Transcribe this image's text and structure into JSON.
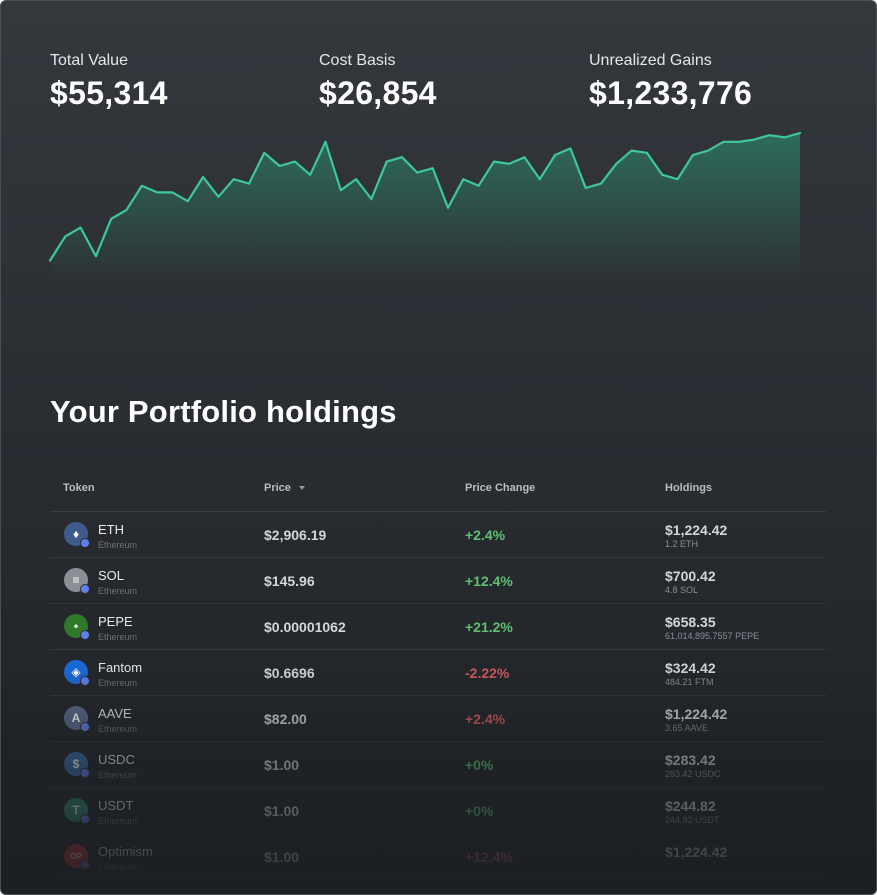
{
  "stats": [
    {
      "label": "Total Value",
      "value": "$55,314"
    },
    {
      "label": "Cost Basis",
      "value": "$26,854"
    },
    {
      "label": "Unrealized Gains",
      "value": "$1,233,776"
    }
  ],
  "chart_data": {
    "type": "area",
    "series": [
      {
        "values": [
          32,
          43,
          47,
          34,
          51,
          55,
          66,
          63,
          63,
          59,
          70,
          61,
          69,
          67,
          81,
          75,
          77,
          71,
          86,
          64,
          69,
          60,
          77,
          79,
          72,
          74,
          56,
          69,
          66,
          77,
          76,
          79,
          69,
          80,
          83,
          65,
          67,
          76,
          82,
          81,
          71,
          69,
          80,
          82,
          86,
          86,
          87,
          89,
          88,
          90
        ]
      }
    ],
    "ylim": [
      0,
      100
    ],
    "line_color": "#3ec79c",
    "fill_color": "#2a9a76"
  },
  "section_title": "Your Portfolio holdings",
  "table": {
    "headers": {
      "token": "Token",
      "price": "Price",
      "change": "Price Change",
      "holdings": "Holdings"
    },
    "sort_column": "price",
    "rows": [
      {
        "symbol": "ETH",
        "chain": "Ethereum",
        "price": "$2,906.19",
        "change": "+2.4%",
        "trend": "up",
        "value": "$1,224.42",
        "amount": "1.2 ETH",
        "icon": "eth-icon",
        "icon_bg": "#3f5a8c",
        "glyph": "♦"
      },
      {
        "symbol": "SOL",
        "chain": "Ethereum",
        "price": "$145.96",
        "change": "+12.4%",
        "trend": "up",
        "value": "$700.42",
        "amount": "4.8 SOL",
        "icon": "sol-icon",
        "icon_bg": "#8c9096",
        "glyph": "≡"
      },
      {
        "symbol": "PEPE",
        "chain": "Ethereum",
        "price": "$0.00001062",
        "change": "+21.2%",
        "trend": "up",
        "value": "$658.35",
        "amount": "61,014,895.7557 PEPE",
        "icon": "pepe-icon",
        "icon_bg": "#2f7a2a",
        "glyph": "•"
      },
      {
        "symbol": "Fantom",
        "chain": "Ethereum",
        "price": "$0.6696",
        "change": "-2.22%",
        "trend": "down",
        "value": "$324.42",
        "amount": "484.21 FTM",
        "icon": "fantom-icon",
        "icon_bg": "#1a6ad8",
        "glyph": "◈"
      },
      {
        "symbol": "AAVE",
        "chain": "Ethereum",
        "price": "$82.00",
        "change": "+2.4%",
        "trend": "down",
        "value": "$1,224.42",
        "amount": "3.65 AAVE",
        "icon": "aave-icon",
        "icon_bg": "#5a6a8c",
        "glyph": "A"
      },
      {
        "symbol": "USDC",
        "chain": "Ethereum",
        "price": "$1.00",
        "change": "+0%",
        "trend": "up",
        "value": "$283.42",
        "amount": "283.42 USDC",
        "icon": "usdc-icon",
        "icon_bg": "#3b6aa6",
        "glyph": "$"
      },
      {
        "symbol": "USDT",
        "chain": "Ethereum",
        "price": "$1.00",
        "change": "+0%",
        "trend": "up",
        "value": "$244.82",
        "amount": "244.82 USDT",
        "icon": "usdt-icon",
        "icon_bg": "#2f8a72",
        "glyph": "T"
      },
      {
        "symbol": "Optimism",
        "chain": "Ethereum",
        "price": "$1.00",
        "change": "+12.4%",
        "trend": "down",
        "value": "$1,224.42",
        "amount": "",
        "icon": "optimism-icon",
        "icon_bg": "#d6303a",
        "glyph": "OP"
      }
    ]
  },
  "colors": {
    "up": "#5fbf72",
    "down": "#d25a60",
    "accent": "#3ec79c"
  }
}
